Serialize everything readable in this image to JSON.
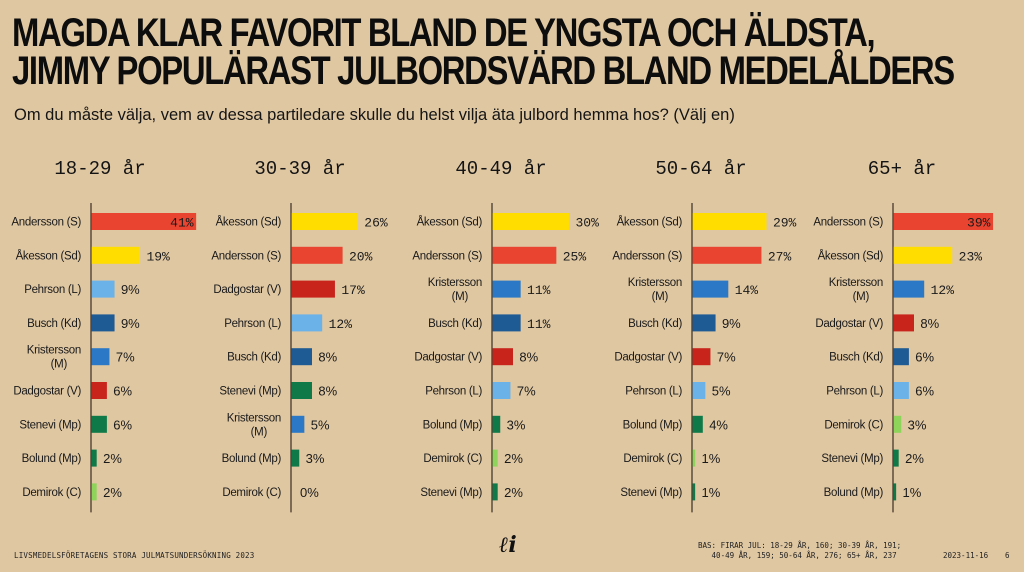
{
  "header": {
    "title_line1": "MAGDA KLAR FAVORIT BLAND DE YNGSTA OCH ÄLDSTA,",
    "title_line2": "JIMMY POPULÄRAST JULBORDSVÄRD BLAND MEDELÅLDERS",
    "subtitle": "Om du måste välja, vem av dessa partiledare skulle du helst vilja äta julbord hemma hos? (Välj en)"
  },
  "footer": {
    "source": "LIVSMEDELSFÖRETAGENS STORA JULMATSUNDERSÖKNING 2023",
    "base_line1": "BAS: FIRAR JUL: 18-29 ÅR, 160; 30-39 ÅR, 191;",
    "base_line2": "   40-49 ÅR, 159; 50-64 ÅR, 276; 65+ ÅR, 237",
    "date": "2023-11-16",
    "page": "6",
    "logo": "ℓi",
    "logo_icon": "li-script-logo"
  },
  "colors": {
    "background": "#dfc7a2",
    "S": "#e84430",
    "Sd": "#ffdd00",
    "L": "#6ab2e8",
    "Kd": "#1e5a94",
    "M": "#2a78c6",
    "V": "#c8241c",
    "Mp": "#0f7a48",
    "C": "#8fd45a"
  },
  "chart_data": [
    {
      "type": "bar",
      "orientation": "horizontal",
      "title": "18-29 år",
      "categories": [
        "Andersson (S)",
        "Åkesson (Sd)",
        "Pehrson (L)",
        "Busch (Kd)",
        "Kristersson (M)",
        "Dadgostar (V)",
        "Stenevi (Mp)",
        "Bolund (Mp)",
        "Demirok (C)"
      ],
      "parties": [
        "S",
        "Sd",
        "L",
        "Kd",
        "M",
        "V",
        "Mp",
        "Mp",
        "C"
      ],
      "values": [
        41,
        19,
        9,
        9,
        7,
        6,
        6,
        2,
        2
      ],
      "labels": [
        "41%",
        "19%",
        "9%",
        "9%",
        "7%",
        "6%",
        "6%",
        "2%",
        "2%"
      ],
      "unit": "%",
      "xlim": [
        0,
        41
      ],
      "grid": false
    },
    {
      "type": "bar",
      "orientation": "horizontal",
      "title": "30-39 år",
      "categories": [
        "Åkesson (Sd)",
        "Andersson (S)",
        "Dadgostar (V)",
        "Pehrson (L)",
        "Busch (Kd)",
        "Stenevi (Mp)",
        "Kristersson (M)",
        "Bolund (Mp)",
        "Demirok (C)"
      ],
      "parties": [
        "Sd",
        "S",
        "V",
        "L",
        "Kd",
        "Mp",
        "M",
        "Mp",
        "C"
      ],
      "values": [
        26,
        20,
        17,
        12,
        8,
        8,
        5,
        3,
        0
      ],
      "labels": [
        "26%",
        "20%",
        "17%",
        "12%",
        "8%",
        "8%",
        "5%",
        "3%",
        "0%"
      ],
      "unit": "%",
      "xlim": [
        0,
        41
      ],
      "grid": false
    },
    {
      "type": "bar",
      "orientation": "horizontal",
      "title": "40-49 år",
      "categories": [
        "Åkesson (Sd)",
        "Andersson (S)",
        "Kristersson (M)",
        "Busch (Kd)",
        "Dadgostar (V)",
        "Pehrson (L)",
        "Bolund (Mp)",
        "Demirok (C)",
        "Stenevi (Mp)"
      ],
      "parties": [
        "Sd",
        "S",
        "M",
        "Kd",
        "V",
        "L",
        "Mp",
        "C",
        "Mp"
      ],
      "values": [
        30,
        25,
        11,
        11,
        8,
        7,
        3,
        2,
        2
      ],
      "labels": [
        "30%",
        "25%",
        "11%",
        "11%",
        "8%",
        "7%",
        "3%",
        "2%",
        "2%"
      ],
      "unit": "%",
      "xlim": [
        0,
        41
      ],
      "grid": false
    },
    {
      "type": "bar",
      "orientation": "horizontal",
      "title": "50-64 år",
      "categories": [
        "Åkesson (Sd)",
        "Andersson (S)",
        "Kristersson (M)",
        "Busch (Kd)",
        "Dadgostar (V)",
        "Pehrson (L)",
        "Bolund (Mp)",
        "Demirok (C)",
        "Stenevi (Mp)"
      ],
      "parties": [
        "Sd",
        "S",
        "M",
        "Kd",
        "V",
        "L",
        "Mp",
        "C",
        "Mp"
      ],
      "values": [
        29,
        27,
        14,
        9,
        7,
        5,
        4,
        1,
        1
      ],
      "labels": [
        "29%",
        "27%",
        "14%",
        "9%",
        "7%",
        "5%",
        "4%",
        "1%",
        "1%"
      ],
      "unit": "%",
      "xlim": [
        0,
        41
      ],
      "grid": false
    },
    {
      "type": "bar",
      "orientation": "horizontal",
      "title": "65+ år",
      "categories": [
        "Andersson (S)",
        "Åkesson (Sd)",
        "Kristersson (M)",
        "Dadgostar (V)",
        "Busch (Kd)",
        "Pehrson (L)",
        "Demirok (C)",
        "Stenevi (Mp)",
        "Bolund (Mp)"
      ],
      "parties": [
        "S",
        "Sd",
        "M",
        "V",
        "Kd",
        "L",
        "C",
        "Mp",
        "Mp"
      ],
      "values": [
        39,
        23,
        12,
        8,
        6,
        6,
        3,
        2,
        1
      ],
      "labels": [
        "39%",
        "23%",
        "12%",
        "8%",
        "6%",
        "6%",
        "3%",
        "2%",
        "1%"
      ],
      "unit": "%",
      "xlim": [
        0,
        41
      ],
      "grid": false
    }
  ]
}
